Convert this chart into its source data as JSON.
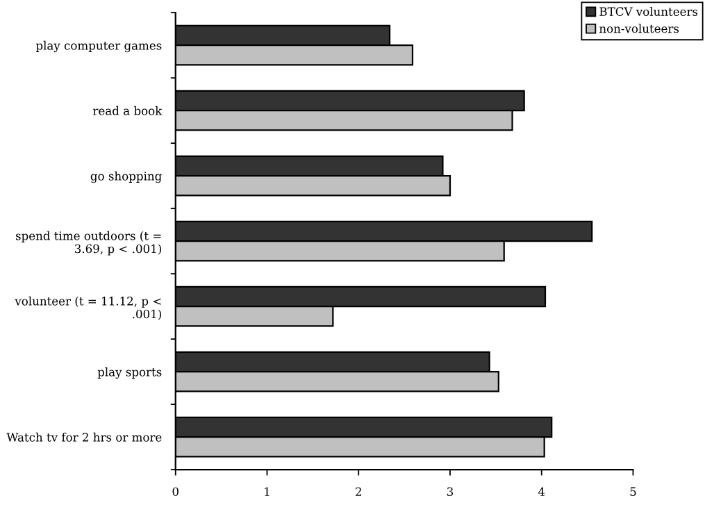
{
  "chart_data": {
    "type": "bar",
    "orientation": "horizontal",
    "categories": [
      "play computer games",
      "read a book",
      "go shopping",
      "spend time outdoors (t = 3.69, p < .001)",
      "volunteer (t = 11.12, p < .001)",
      "play sports",
      "Watch tv for 2 hrs or more"
    ],
    "series": [
      {
        "name": "BTCV volunteers",
        "color": "#333333",
        "values": [
          2.34,
          3.81,
          2.92,
          4.55,
          4.04,
          3.43,
          4.11
        ]
      },
      {
        "name": "non-voluteers",
        "color": "#c0c0c0",
        "values": [
          2.59,
          3.68,
          3.0,
          3.59,
          1.72,
          3.53,
          4.03
        ]
      }
    ],
    "xlim": [
      0,
      5
    ],
    "xticks": [
      0,
      1,
      2,
      3,
      4,
      5
    ],
    "grid": false,
    "legend": "top right"
  }
}
